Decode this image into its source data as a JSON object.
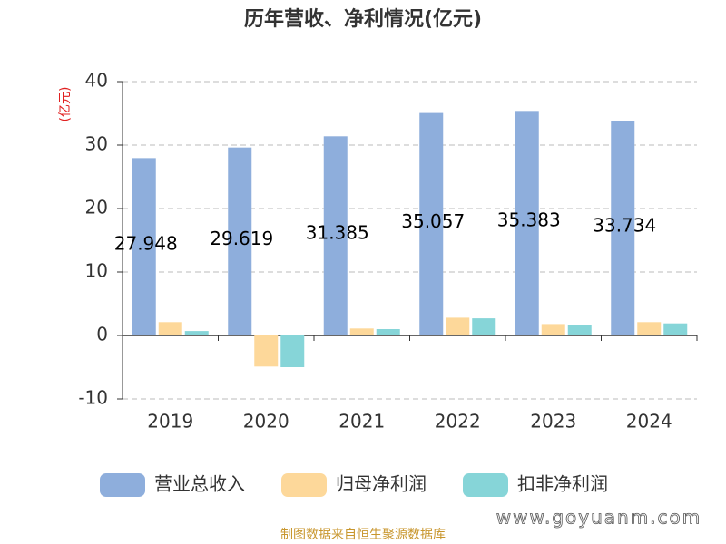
{
  "chart_data": {
    "type": "bar",
    "title": "历年营收、净利情况(亿元)",
    "y_label": "(亿元)",
    "categories": [
      "2019",
      "2020",
      "2021",
      "2022",
      "2023",
      "2024"
    ],
    "series": [
      {
        "name": "营业总收入",
        "color": "#8eaedc",
        "values": [
          27.948,
          29.619,
          31.385,
          35.057,
          35.383,
          33.734
        ]
      },
      {
        "name": "归母净利润",
        "color": "#fdd89a",
        "values": [
          2.1,
          -4.9,
          1.1,
          2.8,
          1.8,
          2.1
        ]
      },
      {
        "name": "扣非净利润",
        "color": "#86d5d8",
        "values": [
          0.7,
          -5.0,
          1.0,
          2.7,
          1.7,
          1.9
        ]
      }
    ],
    "ylim": [
      -10,
      40
    ],
    "yticks": [
      -10,
      0,
      10,
      20,
      30,
      40
    ],
    "grid": true,
    "footer": "制图数据来自恒生聚源数据库",
    "watermark": "www.goyuanm.com"
  }
}
